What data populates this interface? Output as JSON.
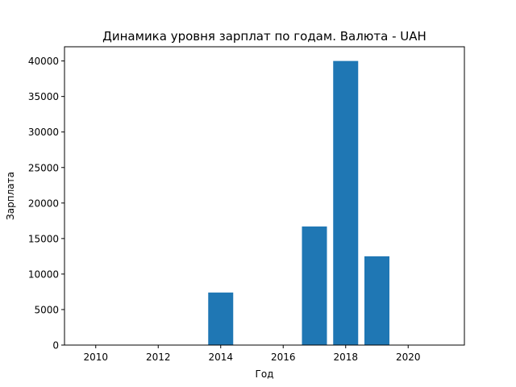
{
  "chart_data": {
    "type": "bar",
    "title": "Динамика уровня зарплат по годам. Валюта - UAH",
    "xlabel": "Год",
    "ylabel": "Зарплата",
    "x": [
      2014,
      2017,
      2018,
      2019
    ],
    "values": [
      7400,
      16700,
      40000,
      12500
    ],
    "bar_width": 0.8,
    "xlim": [
      2009,
      2021.8
    ],
    "ylim": [
      0,
      42000
    ],
    "xticks": [
      2010,
      2012,
      2014,
      2016,
      2018,
      2020
    ],
    "xtick_labels": [
      "2010",
      "2012",
      "2014",
      "2016",
      "2018",
      "2020"
    ],
    "yticks": [
      0,
      5000,
      10000,
      15000,
      20000,
      25000,
      30000,
      35000,
      40000
    ],
    "ytick_labels": [
      "0",
      "5000",
      "10000",
      "15000",
      "20000",
      "25000",
      "30000",
      "35000",
      "40000"
    ],
    "bar_color": "#1f77b4",
    "grid": false,
    "legend": "none"
  }
}
